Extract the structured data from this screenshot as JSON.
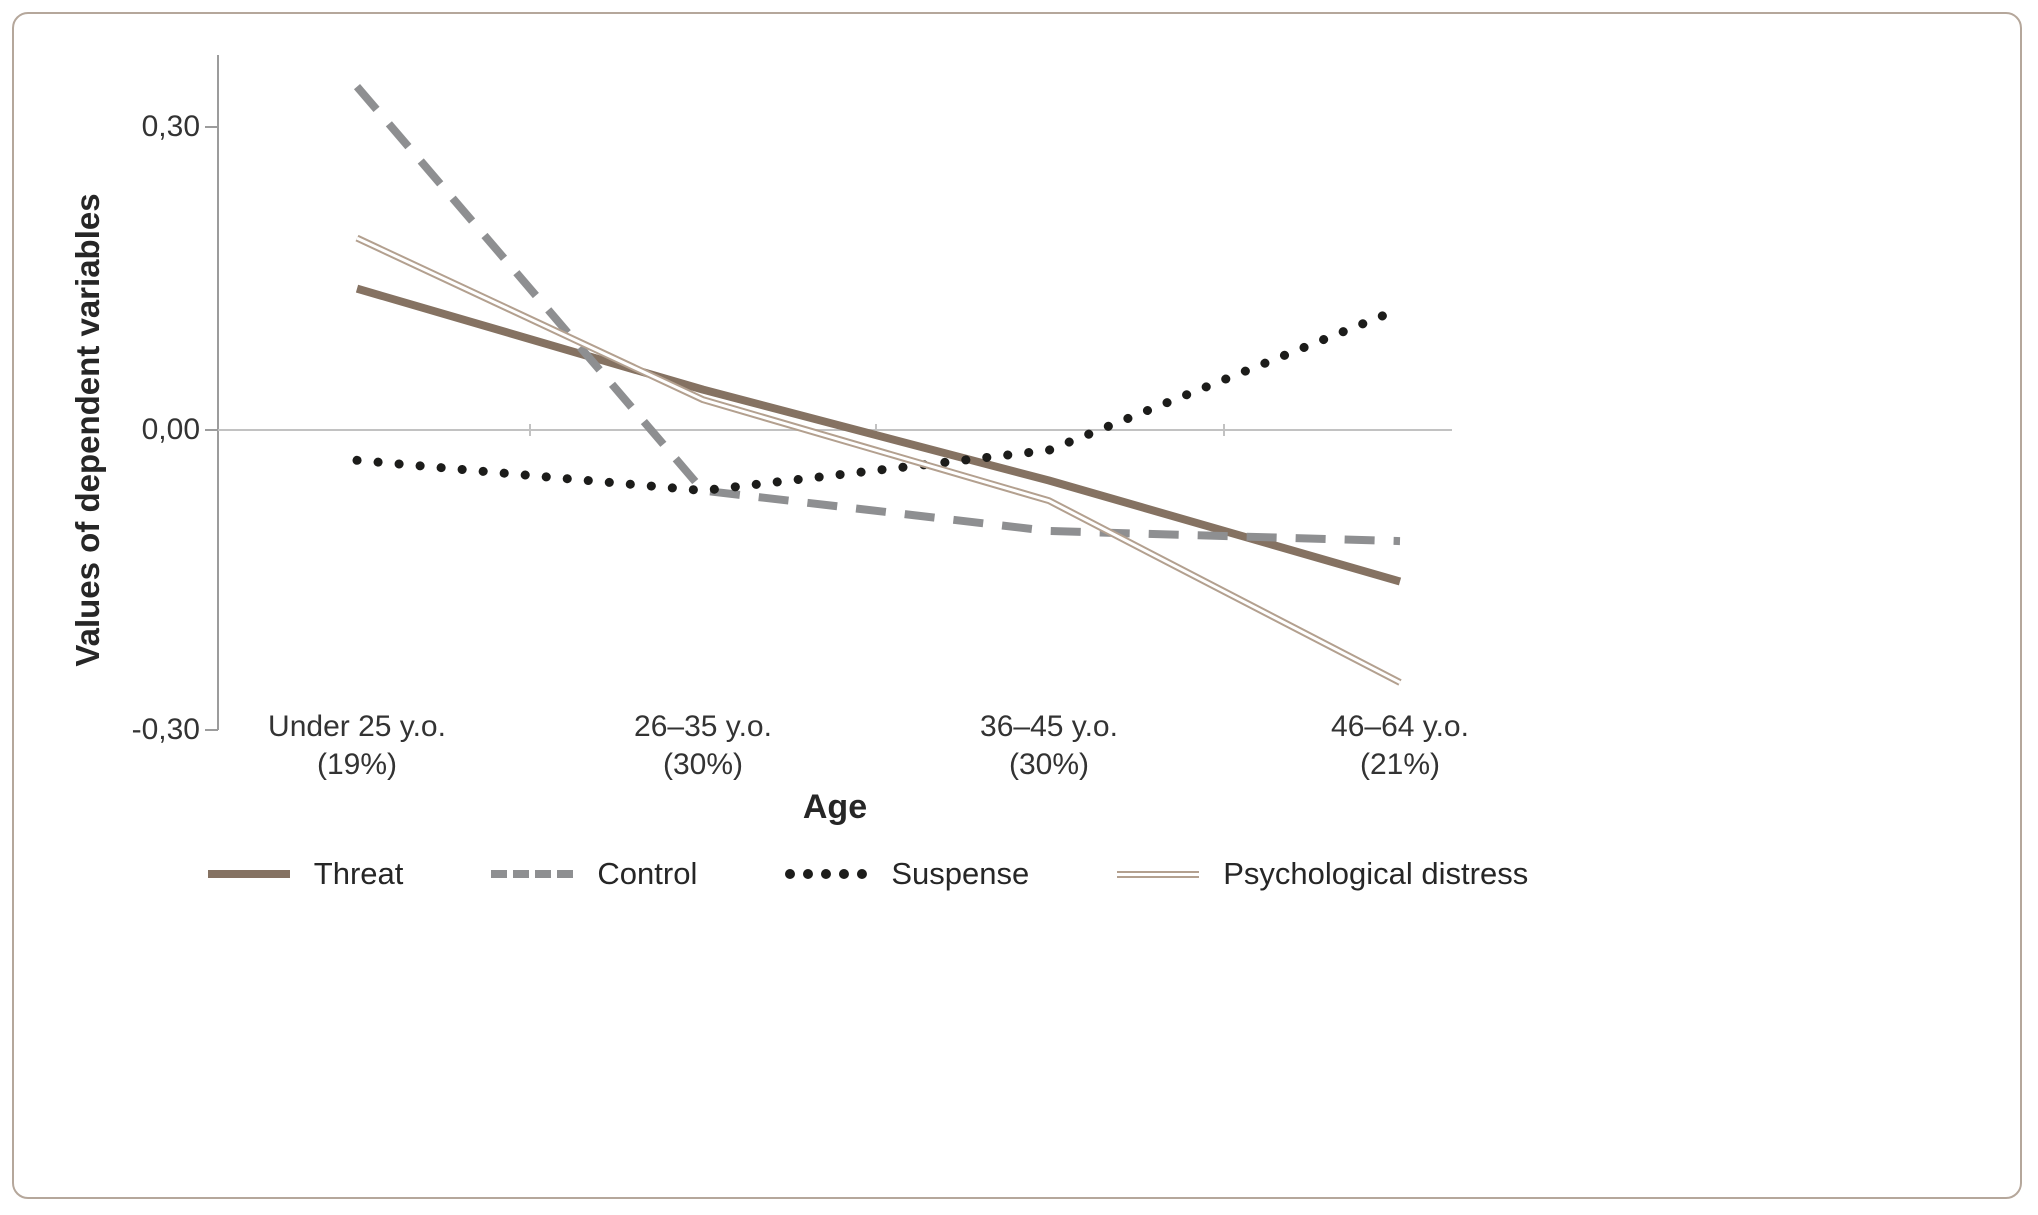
{
  "chart_data": {
    "type": "line",
    "title": "",
    "xlabel": "Age",
    "ylabel": "Values of dependent variables",
    "categories": [
      "Under 25 y.o.",
      "26–35 y.o.",
      "36–45 y.o.",
      "46–64 y.o."
    ],
    "category_sublabels": [
      "(19%)",
      "(30%)",
      "(30%)",
      "(21%)"
    ],
    "yticks": [
      "0,30",
      "0,00",
      "-0,30"
    ],
    "ytick_values": [
      0.3,
      0.0,
      -0.3
    ],
    "ylim": [
      -0.3,
      0.37
    ],
    "grid": false,
    "legend_position": "bottom",
    "series": [
      {
        "name": "Threat",
        "style": "solid",
        "color": "#857262",
        "values": [
          0.14,
          0.04,
          -0.05,
          -0.15
        ]
      },
      {
        "name": "Control",
        "style": "dashed",
        "color": "#8e8f91",
        "values": [
          0.34,
          -0.06,
          -0.1,
          -0.11
        ]
      },
      {
        "name": "Suspense",
        "style": "dotted",
        "color": "#1c1c1a",
        "values": [
          -0.03,
          -0.06,
          -0.02,
          0.12
        ]
      },
      {
        "name": "Psychological distress",
        "style": "double",
        "color": "#b3a08f",
        "values": [
          0.19,
          0.03,
          -0.07,
          -0.25
        ]
      }
    ]
  },
  "colors": {
    "card_border": "#b5a79b",
    "axis": "#9c9c9c",
    "zero_line": "#c2c2c2",
    "background": "#ffffff"
  }
}
